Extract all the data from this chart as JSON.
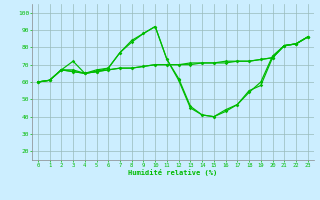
{
  "xlabel": "Humidité relative (%)",
  "bg_color": "#cceeff",
  "grid_color": "#99bbbb",
  "line_color": "#00bb00",
  "markersize": 1.8,
  "linewidth": 0.85,
  "xlim": [
    -0.5,
    23.5
  ],
  "ylim": [
    15,
    105
  ],
  "yticks": [
    20,
    30,
    40,
    50,
    60,
    70,
    80,
    90,
    100
  ],
  "xticks": [
    0,
    1,
    2,
    3,
    4,
    5,
    6,
    7,
    8,
    9,
    10,
    11,
    12,
    13,
    14,
    15,
    16,
    17,
    18,
    19,
    20,
    21,
    22,
    23
  ],
  "series": [
    [
      60,
      61,
      67,
      66,
      65,
      67,
      68,
      77,
      84,
      88,
      92,
      73,
      61,
      45,
      41,
      40,
      43,
      47,
      54,
      60,
      75,
      81,
      82,
      86
    ],
    [
      60,
      61,
      67,
      72,
      65,
      66,
      68,
      77,
      83,
      88,
      92,
      73,
      62,
      46,
      41,
      40,
      44,
      47,
      55,
      58,
      74,
      81,
      82,
      86
    ],
    [
      60,
      61,
      67,
      67,
      65,
      66,
      67,
      68,
      68,
      69,
      70,
      70,
      70,
      70,
      71,
      71,
      71,
      72,
      72,
      73,
      74,
      81,
      82,
      86
    ],
    [
      60,
      61,
      67,
      66,
      65,
      66,
      67,
      68,
      68,
      69,
      70,
      70,
      70,
      71,
      71,
      71,
      72,
      72,
      72,
      73,
      74,
      81,
      82,
      86
    ]
  ]
}
